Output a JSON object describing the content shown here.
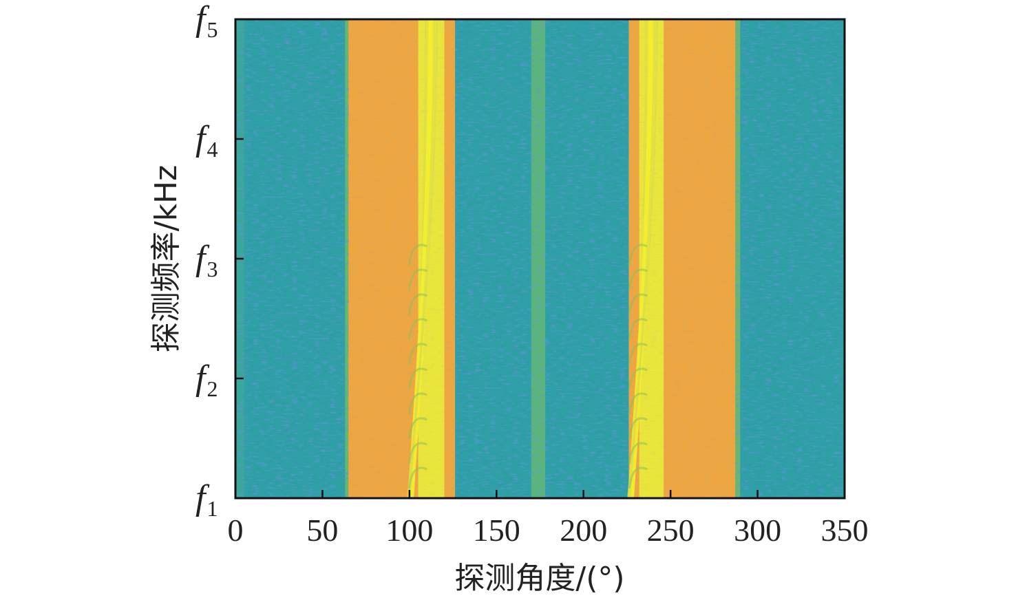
{
  "chart_data": {
    "type": "heatmap",
    "xlabel": "探测角度/(°)",
    "ylabel": "探测频率/kHz",
    "xlim": [
      0,
      350
    ],
    "x_ticks": [
      "0",
      "50",
      "100",
      "150",
      "200",
      "250",
      "300",
      "350"
    ],
    "y_ticks": [
      {
        "symbol": "f",
        "sub": "1"
      },
      {
        "symbol": "f",
        "sub": "2"
      },
      {
        "symbol": "f",
        "sub": "3"
      },
      {
        "symbol": "f",
        "sub": "4"
      },
      {
        "symbol": "f",
        "sub": "5"
      }
    ],
    "angle_bands": [
      {
        "from": 0,
        "to": 5,
        "level": "medium-low"
      },
      {
        "from": 5,
        "to": 63,
        "level": "low"
      },
      {
        "from": 63,
        "to": 65,
        "level": "transition"
      },
      {
        "from": 65,
        "to": 105,
        "level": "high"
      },
      {
        "from": 105,
        "to": 120,
        "level": "peak"
      },
      {
        "from": 120,
        "to": 126,
        "level": "high"
      },
      {
        "from": 126,
        "to": 170,
        "level": "low"
      },
      {
        "from": 170,
        "to": 178,
        "level": "medium"
      },
      {
        "from": 178,
        "to": 226,
        "level": "low"
      },
      {
        "from": 226,
        "to": 232,
        "level": "high"
      },
      {
        "from": 232,
        "to": 246,
        "level": "peak"
      },
      {
        "from": 246,
        "to": 287,
        "level": "high"
      },
      {
        "from": 287,
        "to": 290,
        "level": "transition"
      },
      {
        "from": 290,
        "to": 350,
        "level": "low"
      }
    ],
    "colors": {
      "low": "#2f9fa6",
      "medium-low": "#3aa79a",
      "medium": "#5bb57a",
      "transition": "#6ab66f",
      "high": "#eda642",
      "peak": "#e9e53b"
    }
  }
}
